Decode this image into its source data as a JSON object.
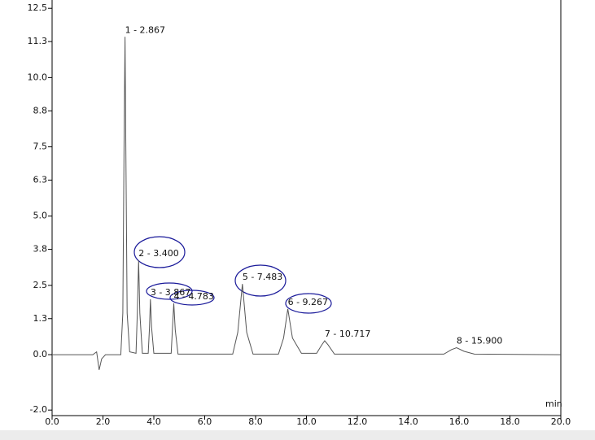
{
  "chart_data": {
    "type": "line",
    "x_label": "min",
    "xlim": [
      0,
      20
    ],
    "ylim": [
      -2.2,
      12.8
    ],
    "xticks": [
      {
        "value": 0,
        "label": "0.0"
      },
      {
        "value": 2,
        "label": "2.0"
      },
      {
        "value": 4,
        "label": "4.0"
      },
      {
        "value": 6,
        "label": "6.0"
      },
      {
        "value": 8,
        "label": "8.0"
      },
      {
        "value": 10,
        "label": "10.0"
      },
      {
        "value": 12,
        "label": "12.0"
      },
      {
        "value": 14,
        "label": "14.0"
      },
      {
        "value": 16,
        "label": "16.0"
      },
      {
        "value": 18,
        "label": "18.0"
      },
      {
        "value": 20,
        "label": "20.0"
      }
    ],
    "yticks": [
      {
        "value": -2,
        "label": "-2.0"
      },
      {
        "value": 0,
        "label": "0.0"
      },
      1.3,
      2.5,
      3.8,
      {
        "value": 5,
        "label": "5.0"
      },
      6.3,
      7.5,
      8.8,
      {
        "value": 10,
        "label": "10.0"
      },
      11.3,
      12.5
    ],
    "series": [
      {
        "color": "#555555",
        "x": [
          0,
          1.6,
          1.75,
          1.85,
          1.95,
          2.1,
          2.7,
          2.78,
          2.83,
          2.867,
          2.9,
          2.95,
          3.05,
          3.3,
          3.35,
          3.4,
          3.45,
          3.55,
          3.78,
          3.83,
          3.867,
          3.91,
          4.0,
          4.68,
          4.73,
          4.783,
          4.84,
          4.95,
          7.1,
          7.3,
          7.483,
          7.65,
          7.9,
          8.9,
          9.1,
          9.267,
          9.45,
          9.8,
          10.4,
          10.6,
          10.717,
          10.85,
          11.1,
          15.4,
          15.7,
          15.9,
          16.2,
          16.6,
          20
        ],
        "values": [
          0,
          0,
          0.1,
          -0.55,
          -0.15,
          0,
          0,
          1.5,
          7.5,
          11.47,
          7.5,
          1.5,
          0.1,
          0.05,
          1.5,
          3.4,
          1.5,
          0.05,
          0.05,
          1.0,
          2.0,
          1.0,
          0.05,
          0.05,
          0.9,
          1.85,
          0.9,
          0.02,
          0.02,
          0.8,
          2.55,
          0.8,
          0.02,
          0.02,
          0.6,
          1.65,
          0.6,
          0.05,
          0.05,
          0.35,
          0.5,
          0.35,
          0.02,
          0.02,
          0.18,
          0.25,
          0.12,
          0.02,
          0
        ]
      }
    ],
    "annotations": [
      {
        "label": "1 - 2.867",
        "x": 2.867,
        "y": 11.47
      },
      {
        "label": "2 - 3.400",
        "x": 3.4,
        "y": 3.4
      },
      {
        "label": "3 - 3.867",
        "x": 3.867,
        "y": 2.0
      },
      {
        "label": "4 - 4.783",
        "x": 4.783,
        "y": 1.85
      },
      {
        "label": "5 - 7.483",
        "x": 7.483,
        "y": 2.55
      },
      {
        "label": "6 - 9.267",
        "x": 9.267,
        "y": 1.65
      },
      {
        "label": "7 - 10.717",
        "x": 10.717,
        "y": 0.5
      },
      {
        "label": "8 - 15.900",
        "x": 15.9,
        "y": 0.25
      }
    ]
  }
}
